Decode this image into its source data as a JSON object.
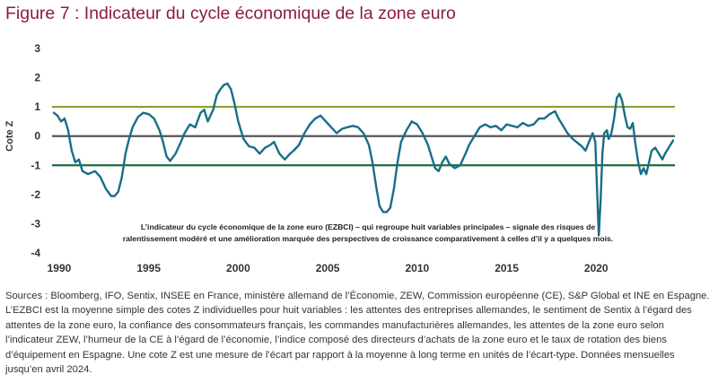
{
  "title": "Figure 7 : Indicateur du cycle économique de la zone euro",
  "footnote": "Sources : Bloomberg, IFO, Sentix, INSEE en France, ministère allemand de l’Économie, ZEW, Commission européenne (CE), S&P Global et INE en Espagne. L’EZBCI est la moyenne simple des cotes Z individuelles pour huit variables : les attentes des entreprises allemandes, le sentiment de Sentix à l’égard des attentes de la zone euro, la confiance des consommateurs français, les commandes manufacturières allemandes, les attentes de la zone euro selon l’indicateur ZEW, l’humeur de la CE à l’égard de l’économie, l’indice composé des directeurs d’achats de la zone euro et le taux de rotation des biens d’équipement en Espagne. Une cote Z est une mesure de l’écart par rapport à la moyenne à long terme en unités de l’écart-type. Données mensuelles jusqu’en avril 2024.",
  "chart_data": {
    "type": "line",
    "title": "",
    "ylabel": "Cote Z",
    "xlabel": "",
    "xlim": [
      1989.6,
      2024.4
    ],
    "ylim": [
      -4,
      3
    ],
    "x_ticks": [
      1990,
      1995,
      2000,
      2005,
      2010,
      2015,
      2020
    ],
    "y_ticks": [
      3,
      2,
      1,
      0,
      -1,
      -2,
      -3,
      -4
    ],
    "reference_lines": [
      {
        "value": 1,
        "color": "#8da03a"
      },
      {
        "value": 0,
        "color": "#555555"
      },
      {
        "value": -1,
        "color": "#1e6b3c"
      }
    ],
    "annotation": [
      "L’indicateur du cycle économique de la zone euro (EZBCI) – qui regroupe huit variables principales – signale des risques de",
      "ralentissement modéré et une amélioration marquée des perspectives de croissance comparativement à celles d’il y a quelques mois."
    ],
    "series": [
      {
        "color": "#1a6d87",
        "points": [
          [
            1989.7,
            0.8
          ],
          [
            1989.9,
            0.7
          ],
          [
            1990.1,
            0.5
          ],
          [
            1990.3,
            0.6
          ],
          [
            1990.5,
            0.2
          ],
          [
            1990.7,
            -0.5
          ],
          [
            1990.9,
            -0.9
          ],
          [
            1991.1,
            -0.8
          ],
          [
            1991.3,
            -1.2
          ],
          [
            1991.6,
            -1.3
          ],
          [
            1992.0,
            -1.2
          ],
          [
            1992.3,
            -1.4
          ],
          [
            1992.6,
            -1.8
          ],
          [
            1992.9,
            -2.05
          ],
          [
            1993.1,
            -2.05
          ],
          [
            1993.3,
            -1.9
          ],
          [
            1993.5,
            -1.4
          ],
          [
            1993.7,
            -0.6
          ],
          [
            1993.9,
            -0.1
          ],
          [
            1994.1,
            0.3
          ],
          [
            1994.4,
            0.65
          ],
          [
            1994.7,
            0.8
          ],
          [
            1995.0,
            0.75
          ],
          [
            1995.3,
            0.6
          ],
          [
            1995.6,
            0.2
          ],
          [
            1995.8,
            -0.2
          ],
          [
            1996.0,
            -0.7
          ],
          [
            1996.2,
            -0.85
          ],
          [
            1996.5,
            -0.6
          ],
          [
            1996.8,
            -0.2
          ],
          [
            1997.0,
            0.1
          ],
          [
            1997.3,
            0.4
          ],
          [
            1997.6,
            0.3
          ],
          [
            1997.9,
            0.8
          ],
          [
            1998.1,
            0.9
          ],
          [
            1998.3,
            0.5
          ],
          [
            1998.6,
            0.9
          ],
          [
            1998.8,
            1.4
          ],
          [
            1999.0,
            1.6
          ],
          [
            1999.2,
            1.75
          ],
          [
            1999.4,
            1.8
          ],
          [
            1999.6,
            1.6
          ],
          [
            1999.8,
            1.1
          ],
          [
            2000.0,
            0.5
          ],
          [
            2000.3,
            -0.1
          ],
          [
            2000.6,
            -0.35
          ],
          [
            2000.9,
            -0.4
          ],
          [
            2001.2,
            -0.6
          ],
          [
            2001.5,
            -0.4
          ],
          [
            2001.8,
            -0.3
          ],
          [
            2002.0,
            -0.2
          ],
          [
            2002.3,
            -0.6
          ],
          [
            2002.6,
            -0.8
          ],
          [
            2002.9,
            -0.6
          ],
          [
            2003.1,
            -0.5
          ],
          [
            2003.4,
            -0.3
          ],
          [
            2003.7,
            0.1
          ],
          [
            2004.0,
            0.4
          ],
          [
            2004.3,
            0.6
          ],
          [
            2004.6,
            0.7
          ],
          [
            2004.9,
            0.5
          ],
          [
            2005.2,
            0.3
          ],
          [
            2005.5,
            0.1
          ],
          [
            2005.8,
            0.25
          ],
          [
            2006.1,
            0.3
          ],
          [
            2006.4,
            0.35
          ],
          [
            2006.7,
            0.3
          ],
          [
            2007.0,
            0.1
          ],
          [
            2007.3,
            -0.3
          ],
          [
            2007.5,
            -0.9
          ],
          [
            2007.7,
            -1.7
          ],
          [
            2007.9,
            -2.4
          ],
          [
            2008.1,
            -2.6
          ],
          [
            2008.3,
            -2.6
          ],
          [
            2008.5,
            -2.45
          ],
          [
            2008.7,
            -1.8
          ],
          [
            2008.9,
            -0.9
          ],
          [
            2009.1,
            -0.2
          ],
          [
            2009.4,
            0.2
          ],
          [
            2009.7,
            0.5
          ],
          [
            2010.0,
            0.4
          ],
          [
            2010.3,
            0.1
          ],
          [
            2010.6,
            -0.3
          ],
          [
            2010.8,
            -0.7
          ],
          [
            2011.0,
            -1.1
          ],
          [
            2011.2,
            -1.2
          ],
          [
            2011.4,
            -0.9
          ],
          [
            2011.6,
            -0.7
          ],
          [
            2011.8,
            -0.95
          ],
          [
            2012.1,
            -1.1
          ],
          [
            2012.4,
            -1.0
          ],
          [
            2012.7,
            -0.6
          ],
          [
            2012.9,
            -0.3
          ],
          [
            2013.2,
            0.0
          ],
          [
            2013.5,
            0.3
          ],
          [
            2013.8,
            0.4
          ],
          [
            2014.1,
            0.3
          ],
          [
            2014.4,
            0.35
          ],
          [
            2014.7,
            0.2
          ],
          [
            2015.0,
            0.4
          ],
          [
            2015.3,
            0.35
          ],
          [
            2015.6,
            0.3
          ],
          [
            2015.9,
            0.45
          ],
          [
            2016.2,
            0.35
          ],
          [
            2016.5,
            0.4
          ],
          [
            2016.8,
            0.6
          ],
          [
            2017.1,
            0.6
          ],
          [
            2017.4,
            0.75
          ],
          [
            2017.7,
            0.85
          ],
          [
            2017.9,
            0.6
          ],
          [
            2018.1,
            0.4
          ],
          [
            2018.4,
            0.1
          ],
          [
            2018.7,
            -0.1
          ],
          [
            2019.0,
            -0.25
          ],
          [
            2019.2,
            -0.35
          ],
          [
            2019.4,
            -0.5
          ],
          [
            2019.6,
            -0.2
          ],
          [
            2019.8,
            0.1
          ],
          [
            2019.95,
            -0.2
          ],
          [
            2020.05,
            -1.8
          ],
          [
            2020.15,
            -3.4
          ],
          [
            2020.25,
            -2.2
          ],
          [
            2020.35,
            -0.6
          ],
          [
            2020.45,
            0.1
          ],
          [
            2020.6,
            0.2
          ],
          [
            2020.7,
            -0.1
          ],
          [
            2020.85,
            0.1
          ],
          [
            2021.0,
            0.6
          ],
          [
            2021.15,
            1.3
          ],
          [
            2021.3,
            1.45
          ],
          [
            2021.45,
            1.2
          ],
          [
            2021.6,
            0.7
          ],
          [
            2021.75,
            0.3
          ],
          [
            2021.9,
            0.25
          ],
          [
            2022.05,
            0.45
          ],
          [
            2022.2,
            -0.3
          ],
          [
            2022.35,
            -0.9
          ],
          [
            2022.5,
            -1.3
          ],
          [
            2022.65,
            -1.1
          ],
          [
            2022.8,
            -1.3
          ],
          [
            2022.95,
            -0.9
          ],
          [
            2023.1,
            -0.5
          ],
          [
            2023.3,
            -0.4
          ],
          [
            2023.5,
            -0.6
          ],
          [
            2023.7,
            -0.8
          ],
          [
            2023.85,
            -0.6
          ],
          [
            2024.0,
            -0.45
          ],
          [
            2024.15,
            -0.3
          ],
          [
            2024.3,
            -0.15
          ]
        ]
      }
    ]
  }
}
